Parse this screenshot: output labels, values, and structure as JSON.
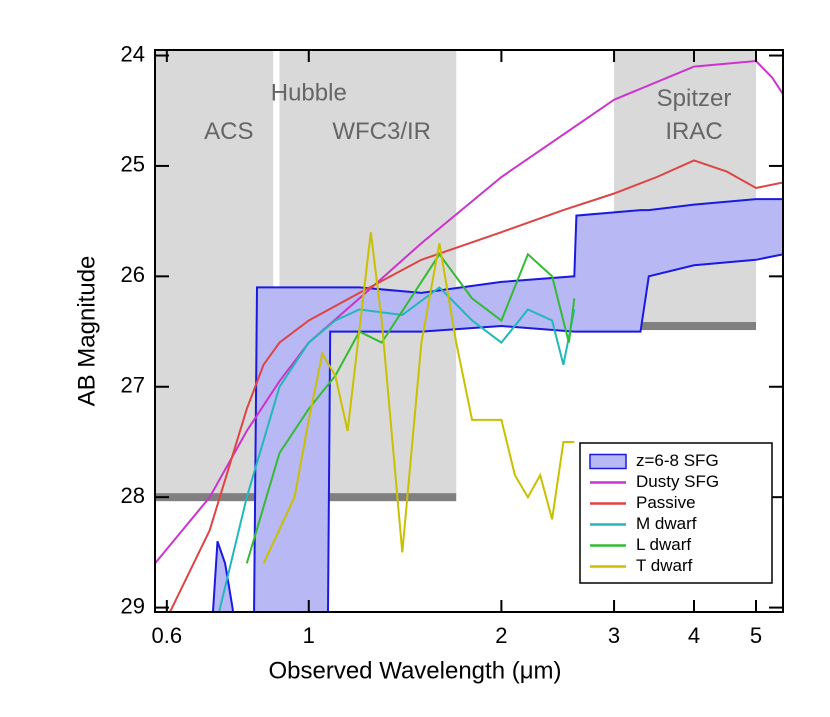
{
  "chart_data": {
    "type": "line",
    "x_label": "Observed Wavelength (μm)",
    "y_label": "AB Magnitude",
    "xlim": [
      0.575,
      5.51
    ],
    "ylim": [
      29.04,
      23.95
    ],
    "log_x": true,
    "xticks": [
      0.6,
      1,
      2,
      3,
      4,
      5
    ],
    "yticks": [
      24,
      25,
      26,
      27,
      28,
      29
    ],
    "legend_position": "lower right",
    "regions": [
      {
        "xlim": [
          0.575,
          0.88
        ],
        "depth": 28
      },
      {
        "xlim": [
          0.9,
          1.7
        ],
        "depth": 28
      },
      {
        "xlim": [
          3.0,
          5.0
        ],
        "depth": 26.45
      }
    ],
    "annotations": [
      {
        "text": "Hubble",
        "x": 1.0,
        "y": 24.35
      },
      {
        "text": "ACS",
        "x": 0.75,
        "y": 24.7
      },
      {
        "text": "WFC3/IR",
        "x": 1.3,
        "y": 24.7
      },
      {
        "text": "Spitzer",
        "x": 4.0,
        "y": 24.4
      },
      {
        "text": "IRAC",
        "x": 4.0,
        "y": 24.7
      }
    ],
    "series": [
      {
        "name": "z=6-8 SFG",
        "color": "#1a1ae0",
        "fill": "#b8b8f4",
        "kind": "band",
        "x": [
          0.7,
          0.72,
          0.74,
          0.76,
          0.78,
          0.8,
          0.82,
          0.83,
          1.0,
          1.07,
          1.08,
          1.2,
          1.5,
          2.0,
          2.6,
          2.62,
          3.3,
          3.4,
          4.0,
          5.0,
          5.51
        ],
        "values": [
          29.5,
          28.4,
          28.6,
          29.0,
          29.5,
          29.5,
          29.5,
          26.1,
          26.1,
          26.1,
          26.1,
          26.1,
          26.15,
          26.05,
          26.0,
          25.45,
          25.4,
          25.4,
          25.35,
          25.3,
          25.3
        ],
        "values_faint": [
          29.5,
          29.5,
          29.5,
          29.5,
          29.5,
          29.5,
          29.5,
          29.5,
          29.5,
          29.5,
          26.5,
          26.5,
          26.5,
          26.45,
          26.5,
          26.5,
          26.5,
          26.0,
          25.9,
          25.85,
          25.8
        ]
      },
      {
        "name": "Dusty SFG",
        "color": "#cc33cc",
        "x": [
          0.575,
          0.7,
          0.8,
          0.9,
          1.0,
          1.2,
          1.5,
          2.0,
          3.0,
          4.0,
          5.0,
          5.3,
          5.51
        ],
        "values": [
          28.6,
          28.0,
          27.4,
          26.95,
          26.6,
          26.2,
          25.7,
          25.1,
          24.4,
          24.1,
          24.05,
          24.2,
          24.35
        ]
      },
      {
        "name": "Passive",
        "color": "#dd4444",
        "x": [
          0.6,
          0.7,
          0.8,
          0.85,
          0.9,
          1.0,
          1.2,
          1.5,
          2.0,
          2.5,
          3.0,
          3.5,
          4.0,
          4.5,
          5.0,
          5.51
        ],
        "values": [
          29.1,
          28.3,
          27.2,
          26.8,
          26.6,
          26.4,
          26.15,
          25.85,
          25.6,
          25.4,
          25.25,
          25.1,
          24.95,
          25.05,
          25.2,
          25.15
        ]
      },
      {
        "name": "M dwarf",
        "color": "#22b8b8",
        "x": [
          0.72,
          0.8,
          0.9,
          1.0,
          1.1,
          1.2,
          1.4,
          1.6,
          1.8,
          2.0,
          2.2,
          2.4,
          2.5,
          2.6
        ],
        "values": [
          29.1,
          28.0,
          27.0,
          26.6,
          26.4,
          26.3,
          26.35,
          26.1,
          26.4,
          26.6,
          26.3,
          26.4,
          26.8,
          26.3
        ]
      },
      {
        "name": "L dwarf",
        "color": "#33bb33",
        "x": [
          0.8,
          0.9,
          1.0,
          1.1,
          1.2,
          1.3,
          1.6,
          1.8,
          2.0,
          2.2,
          2.4,
          2.55,
          2.6
        ],
        "values": [
          28.6,
          27.6,
          27.2,
          26.9,
          26.5,
          26.6,
          25.8,
          26.2,
          26.4,
          25.8,
          26.0,
          26.6,
          26.2
        ]
      },
      {
        "name": "T dwarf",
        "color": "#c8c000",
        "x": [
          0.85,
          0.95,
          1.0,
          1.05,
          1.1,
          1.15,
          1.25,
          1.3,
          1.4,
          1.5,
          1.6,
          1.7,
          1.8,
          2.0,
          2.1,
          2.2,
          2.3,
          2.4,
          2.5,
          2.6
        ],
        "values": [
          28.6,
          28.0,
          27.3,
          26.7,
          26.9,
          27.4,
          25.6,
          26.4,
          28.5,
          26.6,
          25.7,
          26.6,
          27.3,
          27.3,
          27.8,
          28.0,
          27.8,
          28.2,
          27.5,
          27.5
        ]
      }
    ]
  }
}
